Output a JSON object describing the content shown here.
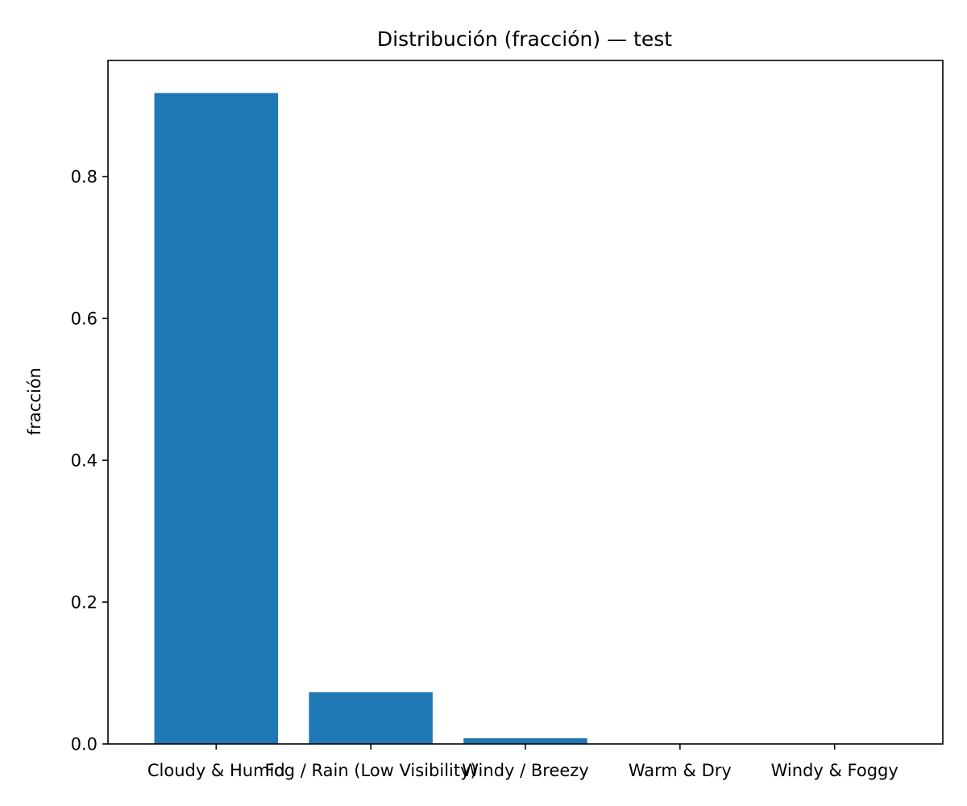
{
  "chart_data": {
    "type": "bar",
    "title": "Distribución (fracción) — test",
    "xlabel": "",
    "ylabel": "fracción",
    "categories": [
      "Cloudy & Humid",
      "Fog / Rain (Low Visibility)",
      "Windy / Breezy",
      "Warm & Dry",
      "Windy & Foggy"
    ],
    "values": [
      0.918,
      0.073,
      0.008,
      0.0,
      0.0
    ],
    "ylim": [
      0,
      0.9639
    ],
    "yticks": [
      0.0,
      0.2,
      0.4,
      0.6,
      0.8
    ],
    "ytick_labels": [
      "0.0",
      "0.2",
      "0.4",
      "0.6",
      "0.8"
    ],
    "bar_color": "#1f77b4",
    "grid": false,
    "legend": "none"
  }
}
